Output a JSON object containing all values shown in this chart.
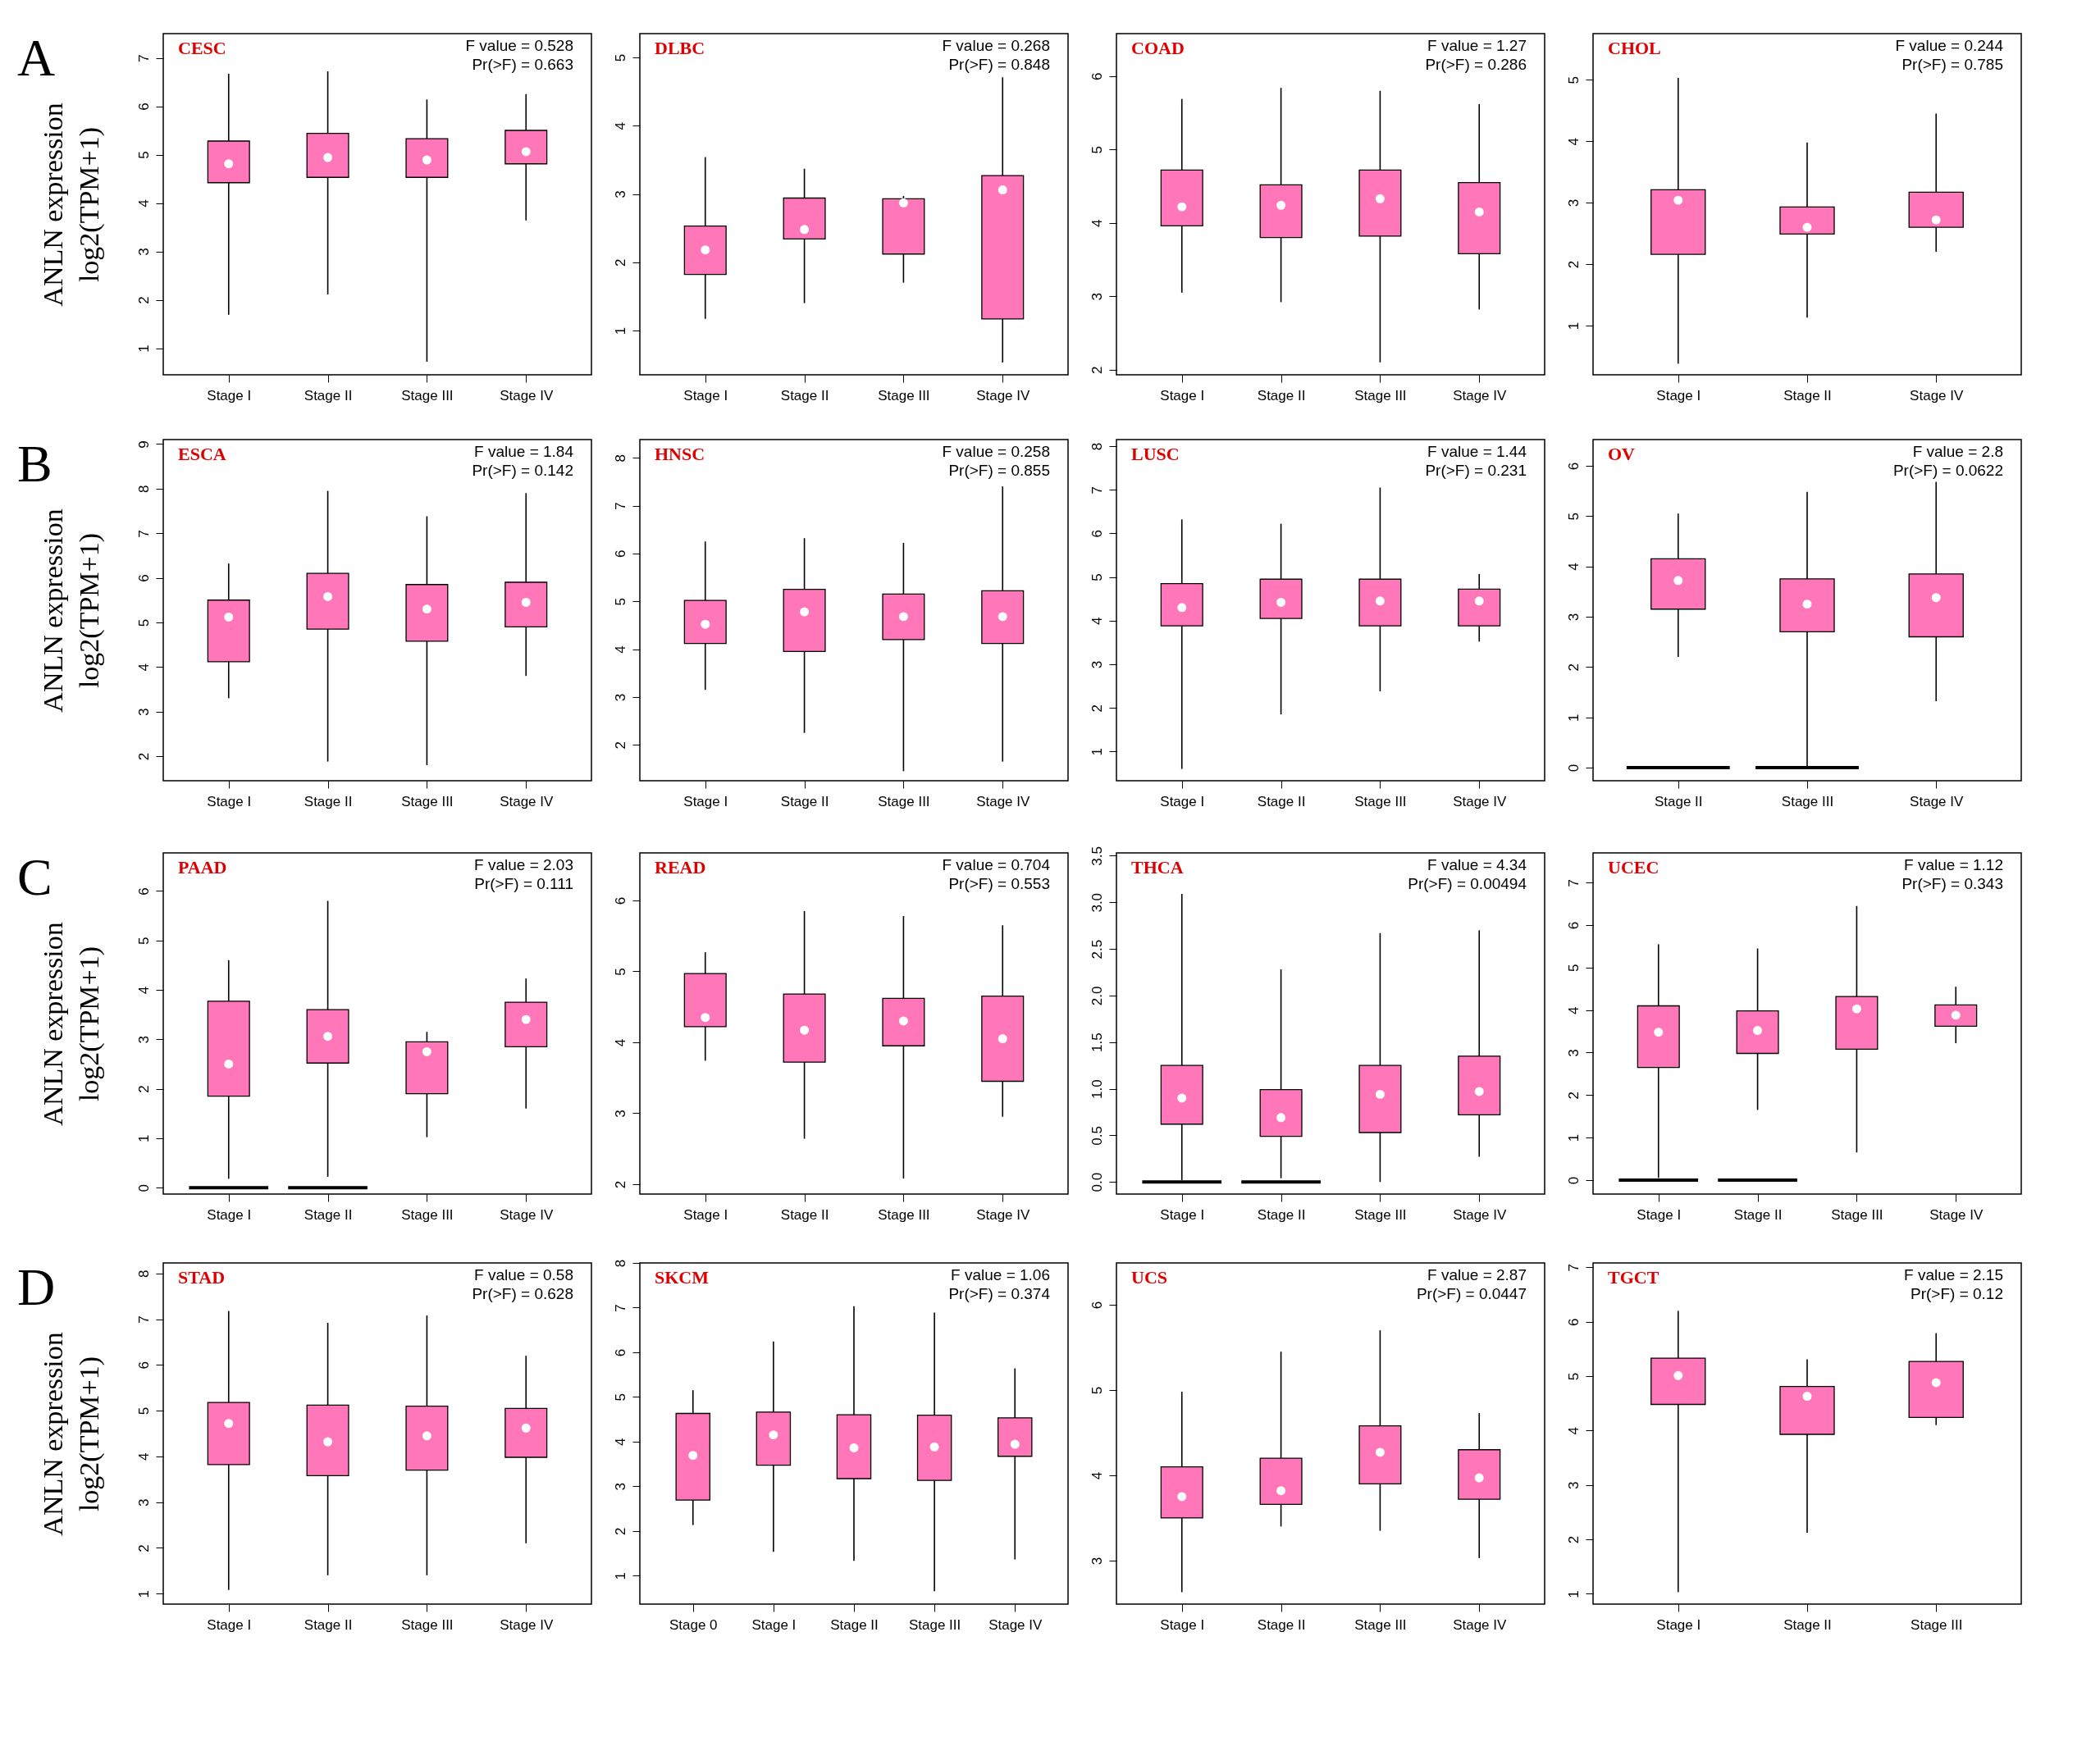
{
  "chart_data": [
    {
      "type": "box",
      "title": "CESC",
      "ylabel": "ANLN expression\nlog2(TPM+1)",
      "annotations": [
        "A",
        "F value = 0.528\nPr(>F) = 0.663"
      ],
      "categories": [
        "Stage I",
        "Stage II",
        "Stage III",
        "Stage IV"
      ],
      "ylim": [
        0.45,
        7.5
      ],
      "yticks": [
        1,
        2,
        3,
        4,
        5,
        6,
        7
      ],
      "series": [
        {
          "color": "#ff77b9",
          "boxes": [
            {
              "low": 1.69,
              "q1": 4.42,
              "median": 4.81,
              "q3": 5.28,
              "high": 6.67
            },
            {
              "low": 2.11,
              "q1": 4.53,
              "median": 4.94,
              "q3": 5.44,
              "high": 6.72
            },
            {
              "low": 0.72,
              "q1": 4.53,
              "median": 4.89,
              "q3": 5.33,
              "high": 6.14
            },
            {
              "low": 3.64,
              "q1": 4.81,
              "median": 5.06,
              "q3": 5.5,
              "high": 6.25
            }
          ]
        }
      ]
    },
    {
      "type": "box",
      "title": "DLBC",
      "annotations": [
        "F value = 0.268\nPr(>F) = 0.848"
      ],
      "categories": [
        "Stage I",
        "Stage II",
        "Stage III",
        "Stage IV"
      ],
      "ylim": [
        0.35,
        5.35
      ],
      "yticks": [
        1,
        2,
        3,
        4,
        5
      ],
      "series": [
        {
          "color": "#ff77b9",
          "boxes": [
            {
              "low": 1.17,
              "q1": 1.82,
              "median": 2.18,
              "q3": 2.53,
              "high": 3.54
            },
            {
              "low": 1.4,
              "q1": 2.34,
              "median": 2.48,
              "q3": 2.94,
              "high": 3.37
            },
            {
              "low": 1.7,
              "q1": 2.12,
              "median": 2.87,
              "q3": 2.93,
              "high": 2.97
            },
            {
              "low": 0.53,
              "q1": 1.17,
              "median": 3.06,
              "q3": 3.27,
              "high": 4.71
            }
          ]
        }
      ]
    },
    {
      "type": "box",
      "title": "COAD",
      "annotations": [
        "F value = 1.27\nPr(>F) = 0.286"
      ],
      "categories": [
        "Stage I",
        "Stage II",
        "Stage III",
        "Stage IV"
      ],
      "ylim": [
        1.93,
        6.58
      ],
      "yticks": [
        2,
        3,
        4,
        5,
        6
      ],
      "series": [
        {
          "color": "#ff77b9",
          "boxes": [
            {
              "low": 3.05,
              "q1": 3.96,
              "median": 4.22,
              "q3": 4.72,
              "high": 5.69
            },
            {
              "low": 2.92,
              "q1": 3.8,
              "median": 4.24,
              "q3": 4.52,
              "high": 5.84
            },
            {
              "low": 2.1,
              "q1": 3.82,
              "median": 4.33,
              "q3": 4.72,
              "high": 5.8
            },
            {
              "low": 2.82,
              "q1": 3.58,
              "median": 4.15,
              "q3": 4.55,
              "high": 5.62
            }
          ]
        }
      ]
    },
    {
      "type": "box",
      "title": "CHOL",
      "annotations": [
        "F value = 0.244\nPr(>F) = 0.785"
      ],
      "categories": [
        "Stage I",
        "Stage II",
        "Stage IV"
      ],
      "ylim": [
        0.2,
        5.75
      ],
      "yticks": [
        1,
        2,
        3,
        4,
        5
      ],
      "series": [
        {
          "color": "#ff77b9",
          "boxes": [
            {
              "low": 0.38,
              "q1": 2.16,
              "median": 3.04,
              "q3": 3.21,
              "high": 5.03
            },
            {
              "low": 1.13,
              "q1": 2.49,
              "median": 2.6,
              "q3": 2.93,
              "high": 3.98
            },
            {
              "low": 2.2,
              "q1": 2.6,
              "median": 2.72,
              "q3": 3.17,
              "high": 4.45
            }
          ]
        }
      ]
    },
    {
      "type": "box",
      "title": "ESCA",
      "ylabel": "ANLN expression\nlog2(TPM+1)",
      "annotations": [
        "B",
        "F value = 1.84\nPr(>F) = 0.142"
      ],
      "categories": [
        "Stage I",
        "Stage II",
        "Stage III",
        "Stage IV"
      ],
      "ylim": [
        1.45,
        9.1
      ],
      "yticks": [
        2,
        3,
        4,
        5,
        6,
        7,
        8,
        9
      ],
      "series": [
        {
          "color": "#ff77b9",
          "boxes": [
            {
              "low": 3.3,
              "q1": 4.12,
              "median": 5.12,
              "q3": 5.5,
              "high": 6.32
            },
            {
              "low": 1.88,
              "q1": 4.85,
              "median": 5.58,
              "q3": 6.1,
              "high": 7.95
            },
            {
              "low": 1.8,
              "q1": 4.58,
              "median": 5.3,
              "q3": 5.85,
              "high": 7.38
            },
            {
              "low": 3.8,
              "q1": 4.9,
              "median": 5.45,
              "q3": 5.9,
              "high": 7.9
            }
          ]
        }
      ]
    },
    {
      "type": "box",
      "title": "HNSC",
      "annotations": [
        "F value = 0.258\nPr(>F) = 0.855"
      ],
      "categories": [
        "Stage I",
        "Stage II",
        "Stage III",
        "Stage IV"
      ],
      "ylim": [
        1.25,
        8.38
      ],
      "yticks": [
        2,
        3,
        4,
        5,
        6,
        7,
        8
      ],
      "series": [
        {
          "color": "#ff77b9",
          "boxes": [
            {
              "low": 3.15,
              "q1": 4.12,
              "median": 4.52,
              "q3": 5.02,
              "high": 6.25
            },
            {
              "low": 2.25,
              "q1": 3.95,
              "median": 4.78,
              "q3": 5.25,
              "high": 6.32
            },
            {
              "low": 1.45,
              "q1": 4.2,
              "median": 4.68,
              "q3": 5.15,
              "high": 6.22
            },
            {
              "low": 1.65,
              "q1": 4.12,
              "median": 4.68,
              "q3": 5.22,
              "high": 7.4
            }
          ]
        }
      ]
    },
    {
      "type": "box",
      "title": "LUSC",
      "annotations": [
        "F value = 1.44\nPr(>F) = 0.231"
      ],
      "categories": [
        "Stage I",
        "Stage II",
        "Stage III",
        "Stage IV"
      ],
      "ylim": [
        0.33,
        8.15
      ],
      "yticks": [
        1,
        2,
        3,
        4,
        5,
        6,
        7,
        8
      ],
      "series": [
        {
          "color": "#ff77b9",
          "boxes": [
            {
              "low": 0.6,
              "q1": 3.88,
              "median": 4.3,
              "q3": 4.85,
              "high": 6.32
            },
            {
              "low": 1.85,
              "q1": 4.05,
              "median": 4.42,
              "q3": 4.95,
              "high": 6.22
            },
            {
              "low": 2.38,
              "q1": 3.88,
              "median": 4.45,
              "q3": 4.95,
              "high": 7.05
            },
            {
              "low": 3.52,
              "q1": 3.88,
              "median": 4.45,
              "q3": 4.72,
              "high": 5.07
            }
          ]
        }
      ]
    },
    {
      "type": "box",
      "title": "OV",
      "annotations": [
        "F value = 2.8\nPr(>F) = 0.0622"
      ],
      "categories": [
        "Stage II",
        "Stage III",
        "Stage IV"
      ],
      "ylim": [
        -0.26,
        6.52
      ],
      "yticks": [
        0,
        1,
        2,
        3,
        4,
        5,
        6
      ],
      "series": [
        {
          "color": "#ff77b9",
          "boxes": [
            {
              "low": 2.2,
              "q1": 3.15,
              "median": 3.72,
              "q3": 4.15,
              "high": 5.05
            },
            {
              "low": 0,
              "q1": 2.7,
              "median": 3.25,
              "q3": 3.75,
              "high": 5.48
            },
            {
              "low": 1.32,
              "q1": 2.6,
              "median": 3.38,
              "q3": 3.85,
              "high": 5.68
            }
          ]
        },
        {
          "type": "bar",
          "color": "#000000",
          "values": [
            0,
            0,
            null
          ]
        }
      ]
    },
    {
      "type": "box",
      "title": "PAAD",
      "ylabel": "ANLN expression\nlog2(TPM+1)",
      "annotations": [
        "C",
        "F value = 2.03\nPr(>F) = 0.111"
      ],
      "categories": [
        "Stage I",
        "Stage II",
        "Stage III",
        "Stage IV"
      ],
      "ylim": [
        -0.13,
        6.77
      ],
      "yticks": [
        0,
        1,
        2,
        3,
        4,
        5,
        6
      ],
      "series": [
        {
          "color": "#ff77b9",
          "boxes": [
            {
              "low": 0.18,
              "q1": 1.85,
              "median": 2.5,
              "q3": 3.77,
              "high": 4.6
            },
            {
              "low": 0.22,
              "q1": 2.52,
              "median": 3.06,
              "q3": 3.6,
              "high": 5.8
            },
            {
              "low": 1.02,
              "q1": 1.9,
              "median": 2.75,
              "q3": 2.95,
              "high": 3.15
            },
            {
              "low": 1.6,
              "q1": 2.85,
              "median": 3.4,
              "q3": 3.75,
              "high": 4.23
            }
          ]
        },
        {
          "type": "bar",
          "color": "#000000",
          "values": [
            0,
            0,
            null,
            null
          ]
        }
      ]
    },
    {
      "type": "box",
      "title": "READ",
      "annotations": [
        "F value = 0.704\nPr(>F) = 0.553"
      ],
      "categories": [
        "Stage I",
        "Stage II",
        "Stage III",
        "Stage IV"
      ],
      "ylim": [
        1.86,
        6.67
      ],
      "yticks": [
        2,
        3,
        4,
        5,
        6
      ],
      "series": [
        {
          "color": "#ff77b9",
          "boxes": [
            {
              "low": 3.74,
              "q1": 4.22,
              "median": 4.35,
              "q3": 4.97,
              "high": 5.27
            },
            {
              "low": 2.64,
              "q1": 3.72,
              "median": 4.17,
              "q3": 4.68,
              "high": 5.85
            },
            {
              "low": 2.08,
              "q1": 3.95,
              "median": 4.3,
              "q3": 4.62,
              "high": 5.78
            },
            {
              "low": 2.95,
              "q1": 3.45,
              "median": 4.05,
              "q3": 4.65,
              "high": 5.65
            }
          ]
        }
      ]
    },
    {
      "type": "box",
      "title": "THCA",
      "annotations": [
        "F value = 4.34\nPr(>F) = 0.00494"
      ],
      "categories": [
        "Stage I",
        "Stage II",
        "Stage III",
        "Stage IV"
      ],
      "ylim": [
        -0.13,
        3.53
      ],
      "yticks": [
        {
          "value": 0,
          "label": "0.0"
        },
        0.5,
        {
          "value": 1,
          "label": "1.0"
        },
        1.5,
        {
          "value": 2,
          "label": "2.0"
        },
        2.5,
        {
          "value": 3,
          "label": "3.0"
        },
        3.5
      ],
      "series": [
        {
          "color": "#ff77b9",
          "boxes": [
            {
              "low": 0.02,
              "q1": 0.62,
              "median": 0.9,
              "q3": 1.25,
              "high": 3.09
            },
            {
              "low": 0.04,
              "q1": 0.49,
              "median": 0.69,
              "q3": 0.99,
              "high": 2.28
            },
            {
              "low": 0,
              "q1": 0.53,
              "median": 0.94,
              "q3": 1.25,
              "high": 2.67
            },
            {
              "low": 0.27,
              "q1": 0.72,
              "median": 0.97,
              "q3": 1.35,
              "high": 2.7
            }
          ]
        },
        {
          "type": "bar",
          "color": "#000000",
          "values": [
            0,
            0,
            null,
            null
          ]
        }
      ]
    },
    {
      "type": "box",
      "title": "UCEC",
      "annotations": [
        "F value = 1.12\nPr(>F) = 0.343"
      ],
      "categories": [
        "Stage I",
        "Stage II",
        "Stage III",
        "Stage IV"
      ],
      "ylim": [
        -0.33,
        7.7
      ],
      "yticks": [
        0,
        1,
        2,
        3,
        4,
        5,
        6,
        7
      ],
      "series": [
        {
          "color": "#ff77b9",
          "boxes": [
            {
              "low": 0.05,
              "q1": 2.65,
              "median": 3.48,
              "q3": 4.1,
              "high": 5.55
            },
            {
              "low": 1.65,
              "q1": 2.98,
              "median": 3.52,
              "q3": 3.98,
              "high": 5.45
            },
            {
              "low": 0.65,
              "q1": 3.08,
              "median": 4.03,
              "q3": 4.32,
              "high": 6.45
            },
            {
              "low": 3.22,
              "q1": 3.62,
              "median": 3.88,
              "q3": 4.12,
              "high": 4.55
            }
          ]
        },
        {
          "type": "bar",
          "color": "#000000",
          "values": [
            0,
            0,
            null,
            null
          ]
        }
      ]
    },
    {
      "type": "box",
      "title": "STAD",
      "ylabel": "ANLN expression\nlog2(TPM+1)",
      "annotations": [
        "D",
        "F value = 0.58\nPr(>F) = 0.628"
      ],
      "categories": [
        "Stage I",
        "Stage II",
        "Stage III",
        "Stage IV"
      ],
      "ylim": [
        0.77,
        8.23
      ],
      "yticks": [
        1,
        2,
        3,
        4,
        5,
        6,
        7,
        8
      ],
      "series": [
        {
          "color": "#ff77b9",
          "boxes": [
            {
              "low": 1.08,
              "q1": 3.82,
              "median": 4.72,
              "q3": 5.18,
              "high": 7.18
            },
            {
              "low": 1.4,
              "q1": 3.58,
              "median": 4.32,
              "q3": 5.12,
              "high": 6.92
            },
            {
              "low": 1.4,
              "q1": 3.7,
              "median": 4.45,
              "q3": 5.1,
              "high": 7.08
            },
            {
              "low": 2.1,
              "q1": 3.98,
              "median": 4.62,
              "q3": 5.05,
              "high": 6.2
            }
          ]
        }
      ]
    },
    {
      "type": "box",
      "title": "SKCM",
      "annotations": [
        "F value = 1.06\nPr(>F) = 0.374"
      ],
      "categories": [
        "Stage 0",
        "Stage I",
        "Stage II",
        "Stage III",
        "Stage IV"
      ],
      "ylim": [
        0.36,
        8.0
      ],
      "yticks": [
        1,
        2,
        3,
        4,
        5,
        6,
        7,
        8
      ],
      "series": [
        {
          "color": "#ff77b9",
          "boxes": [
            {
              "low": 2.13,
              "q1": 2.69,
              "median": 3.69,
              "q3": 4.63,
              "high": 5.15
            },
            {
              "low": 1.53,
              "q1": 3.47,
              "median": 4.15,
              "q3": 4.66,
              "high": 6.24
            },
            {
              "low": 1.33,
              "q1": 3.17,
              "median": 3.86,
              "q3": 4.6,
              "high": 7.03
            },
            {
              "low": 0.65,
              "q1": 3.13,
              "median": 3.88,
              "q3": 4.59,
              "high": 6.89
            },
            {
              "low": 1.36,
              "q1": 3.67,
              "median": 3.94,
              "q3": 4.53,
              "high": 5.64
            }
          ]
        }
      ]
    },
    {
      "type": "box",
      "title": "UCS",
      "annotations": [
        "F value = 2.87\nPr(>F) = 0.0447"
      ],
      "categories": [
        "Stage I",
        "Stage II",
        "Stage III",
        "Stage IV"
      ],
      "ylim": [
        2.49,
        6.49
      ],
      "yticks": [
        3,
        4,
        5,
        6
      ],
      "series": [
        {
          "color": "#ff77b9",
          "boxes": [
            {
              "low": 2.63,
              "q1": 3.5,
              "median": 3.75,
              "q3": 4.1,
              "high": 4.98
            },
            {
              "low": 3.4,
              "q1": 3.66,
              "median": 3.82,
              "q3": 4.2,
              "high": 5.45
            },
            {
              "low": 3.35,
              "q1": 3.9,
              "median": 4.27,
              "q3": 4.58,
              "high": 5.7
            },
            {
              "low": 3.03,
              "q1": 3.72,
              "median": 3.97,
              "q3": 4.3,
              "high": 4.73
            }
          ]
        }
      ]
    },
    {
      "type": "box",
      "title": "TGCT",
      "annotations": [
        "F value = 2.15\nPr(>F) = 0.12"
      ],
      "categories": [
        "Stage I",
        "Stage II",
        "Stage III"
      ],
      "ylim": [
        0.81,
        7.08
      ],
      "yticks": [
        1,
        2,
        3,
        4,
        5,
        6,
        7
      ],
      "series": [
        {
          "color": "#ff77b9",
          "boxes": [
            {
              "low": 1.03,
              "q1": 4.48,
              "median": 5.01,
              "q3": 5.33,
              "high": 6.2
            },
            {
              "low": 2.12,
              "q1": 3.93,
              "median": 4.63,
              "q3": 4.81,
              "high": 5.31
            },
            {
              "low": 4.1,
              "q1": 4.24,
              "median": 4.88,
              "q3": 5.27,
              "high": 5.79
            }
          ]
        }
      ]
    }
  ]
}
